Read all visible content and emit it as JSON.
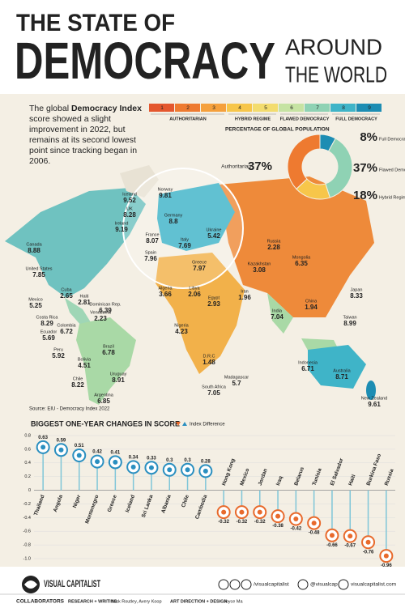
{
  "header": {
    "title_top": "THE STATE OF",
    "title_main": "DEMOCRACY",
    "title_right_1": "AROUND",
    "title_right_2": "THE WORLD"
  },
  "intro": {
    "before": "The global",
    "bold": "Democracy Index",
    "after": "score showed a slight improvement in 2022, but remains at its second lowest point since tracking began in 2006."
  },
  "scale": {
    "levels": [
      1,
      2,
      3,
      4,
      5,
      6,
      7,
      8,
      9
    ],
    "colors": [
      "#e4572e",
      "#ee7a30",
      "#f5a03c",
      "#f7c64a",
      "#f3dc6e",
      "#c6e3a3",
      "#8fd2b4",
      "#3fb4c8",
      "#1d8db3"
    ],
    "groups": [
      "AUTHORITARIAN",
      "HYBRID REGIME",
      "FLAWED DEMOCRACY",
      "FULL DEMOCRACY"
    ]
  },
  "map": {
    "countries": [
      {
        "name": "Canada",
        "score": 8.88
      },
      {
        "name": "United States",
        "score": 7.85
      },
      {
        "name": "Mexico",
        "score": 5.25
      },
      {
        "name": "Cuba",
        "score": 2.65
      },
      {
        "name": "Haiti",
        "score": 2.81
      },
      {
        "name": "Dominican Rep.",
        "score": 6.39
      },
      {
        "name": "Costa Rica",
        "score": 8.29
      },
      {
        "name": "Colombia",
        "score": 6.72
      },
      {
        "name": "Venezuela",
        "score": 2.23
      },
      {
        "name": "Ecuador",
        "score": 5.69
      },
      {
        "name": "Peru",
        "score": 5.92
      },
      {
        "name": "Bolivia",
        "score": 4.51
      },
      {
        "name": "Brazil",
        "score": 6.78
      },
      {
        "name": "Chile",
        "score": 8.22
      },
      {
        "name": "Uruguay",
        "score": 8.91
      },
      {
        "name": "Argentina",
        "score": 6.85
      },
      {
        "name": "Iceland",
        "score": 9.52
      },
      {
        "name": "Norway",
        "score": 9.81
      },
      {
        "name": "UK",
        "score": 8.28
      },
      {
        "name": "Ireland",
        "score": 9.19
      },
      {
        "name": "Germany",
        "score": 8.8
      },
      {
        "name": "France",
        "score": 8.07
      },
      {
        "name": "Spain",
        "score": 7.96
      },
      {
        "name": "Italy",
        "score": 7.69
      },
      {
        "name": "Ukraine",
        "score": 5.42
      },
      {
        "name": "Greece",
        "score": 7.97
      },
      {
        "name": "Russia",
        "score": 2.28
      },
      {
        "name": "Kazakhstan",
        "score": 3.08
      },
      {
        "name": "Mongolia",
        "score": 6.35
      },
      {
        "name": "China",
        "score": 1.94
      },
      {
        "name": "Japan",
        "score": 8.33
      },
      {
        "name": "Taiwan",
        "score": 8.99
      },
      {
        "name": "India",
        "score": 7.04
      },
      {
        "name": "Iran",
        "score": 1.96
      },
      {
        "name": "Algeria",
        "score": 3.66
      },
      {
        "name": "Libya",
        "score": 2.06
      },
      {
        "name": "Egypt",
        "score": 2.93
      },
      {
        "name": "Nigeria",
        "score": 4.23
      },
      {
        "name": "D.R.C",
        "score": 1.48
      },
      {
        "name": "South Africa",
        "score": 7.05
      },
      {
        "name": "Madagascar",
        "score": 5.7
      },
      {
        "name": "Indonesia",
        "score": 6.71
      },
      {
        "name": "Australia",
        "score": 8.71
      },
      {
        "name": "New Zealand",
        "score": 9.61
      }
    ],
    "source": "Source: EIU - Democracy Index 2022"
  },
  "chart_data": [
    {
      "type": "pie",
      "title": "PERCENTAGE OF GLOBAL POPULATION",
      "categories": [
        "Full Democracy",
        "Flawed Democracy",
        "Hybrid Regime",
        "Authoritarian"
      ],
      "values": [
        8,
        37,
        18,
        37
      ],
      "value_labels": [
        "8%",
        "37%",
        "18%",
        "37%"
      ],
      "colors": [
        "#1d8db3",
        "#8fd2b4",
        "#f7c64a",
        "#ee7a30"
      ]
    },
    {
      "type": "lollipop",
      "title": "BIGGEST ONE-YEAR CHANGES IN SCORE",
      "legend": "Index Difference",
      "categories": [
        "Thailand",
        "Angola",
        "Niger",
        "Montenegro",
        "Greece",
        "Iceland",
        "Sri Lanka",
        "Albania",
        "Chile",
        "Cambodia",
        "Hong Kong",
        "Mexico",
        "Jordan",
        "Iraq",
        "Belarus",
        "Tunisia",
        "El Salvador",
        "Haiti",
        "Burkina Faso",
        "Russia"
      ],
      "values": [
        0.63,
        0.59,
        0.51,
        0.42,
        0.41,
        0.34,
        0.33,
        0.3,
        0.3,
        0.28,
        -0.32,
        -0.32,
        -0.32,
        -0.38,
        -0.42,
        -0.48,
        -0.66,
        -0.67,
        -0.76,
        -0.96
      ],
      "positive_color": "#2a8fc0",
      "negative_color": "#e86a2c",
      "ylim": [
        -1,
        0.8
      ],
      "yticks": [
        0.8,
        0.6,
        0.4,
        0.2,
        0,
        -0.2,
        -0.4,
        -0.6,
        -0.8,
        {
          "value": -1,
          "label": "-1.0"
        }
      ],
      "grid": true
    }
  ],
  "footer": {
    "brand": "VISUAL CAPITALIST",
    "collaborators": "COLLABORATORS",
    "research_label": "RESEARCH + WRITING",
    "research_names": "Nick Routley, Avery Koop",
    "art_label": "ART DIRECTION + DESIGN",
    "art_names": "Joyce Ma",
    "social_1": "/visualcapitalist",
    "social_2": "@visualcap",
    "website": "visualcapitalist.com"
  }
}
